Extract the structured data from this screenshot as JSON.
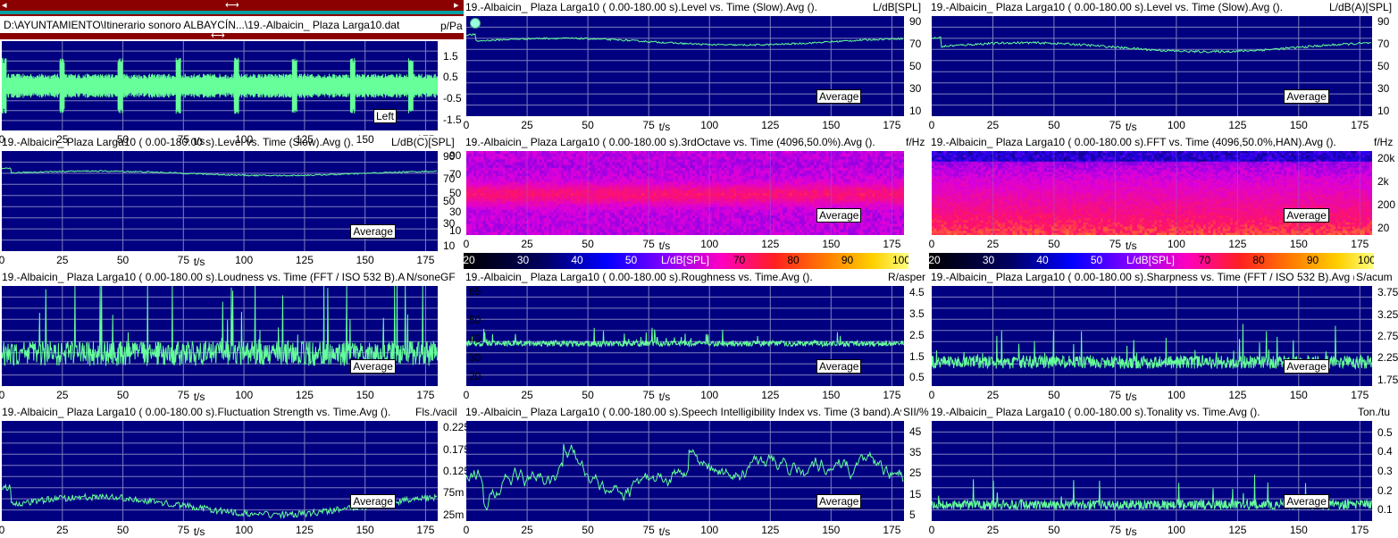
{
  "window": {
    "file_path": "D:\\AYUNTAMIENTO\\Itinerario sonoro ALBAYCÍN...\\19.-Albaicin_ Plaza Larga10.dat",
    "top_arrow": "⟷",
    "splitter_arrow": "⟷"
  },
  "colors": {
    "plot_bg": "#000080",
    "trace": "#66ff99",
    "grid": "#7f7fbf",
    "spectro_low": "#000000",
    "spectro_high": "#ffff80"
  },
  "panels": [
    {
      "id": "wave",
      "title": "",
      "unit": "p/Pa",
      "xunit": "t/s",
      "label": "Left",
      "xticks": [
        "0",
        "25",
        "50",
        "75",
        "100",
        "125",
        "150",
        "175"
      ],
      "yticks": [
        "1.5",
        "0.5",
        "-0.5",
        "-1.5"
      ],
      "yvals": [
        1.5,
        0.5,
        -0.5,
        -1.5
      ],
      "ymin": -2,
      "ymax": 2.2,
      "kind": "wave"
    },
    {
      "id": "level",
      "title": "19.-Albaicin_ Plaza Larga10 ( 0.00-180.00 s).Level vs. Time (Slow).Avg ().",
      "unit": "L/dB[SPL]",
      "xunit": "t/s",
      "label": "Average",
      "xticks": [
        "0",
        "25",
        "50",
        "75",
        "100",
        "125",
        "150",
        "175"
      ],
      "yticks": [
        "90",
        "70",
        "50",
        "30",
        "10"
      ],
      "yvals": [
        90,
        70,
        50,
        30,
        10
      ],
      "ymin": 5,
      "ymax": 95,
      "kind": "line",
      "base": 72,
      "amp": 3,
      "noise": 1.5
    },
    {
      "id": "levela",
      "title": "19.-Albaicin_ Plaza Larga10 ( 0.00-180.00 s).Level vs. Time (Slow).Avg ().",
      "unit": "L/dB(A)[SPL]",
      "xunit": "t/s",
      "label": "Average",
      "xticks": [
        "0",
        "25",
        "50",
        "75",
        "100",
        "125",
        "150",
        "175"
      ],
      "yticks": [
        "90",
        "70",
        "50",
        "30",
        "10"
      ],
      "yvals": [
        90,
        70,
        50,
        30,
        10
      ],
      "ymin": 5,
      "ymax": 95,
      "kind": "line",
      "base": 67,
      "amp": 4,
      "noise": 2
    },
    {
      "id": "levelc",
      "title": "19.-Albaicin_ Plaza Larga10 ( 0.00-180.00 s).Level vs. Time (Slow).Avg ().",
      "unit": "L/dB(C)[SPL]",
      "xunit": "t/s",
      "label": "Average",
      "xticks": [
        "0",
        "25",
        "50",
        "75",
        "100",
        "125",
        "150",
        "175"
      ],
      "yticks": [
        "90",
        "70",
        "50",
        "30",
        "10"
      ],
      "yvals": [
        90,
        70,
        50,
        30,
        10
      ],
      "ymin": 5,
      "ymax": 95,
      "kind": "line",
      "base": 75,
      "amp": 2,
      "noise": 1.2
    },
    {
      "id": "octave",
      "title": "19.-Albaicin_ Plaza Larga10 ( 0.00-180.00 s).3rdOctave vs. Time (4096,50.0%).Avg ().",
      "unit": "f/Hz",
      "xunit": "t/s",
      "label": "Average",
      "xticks": [
        "0",
        "25",
        "50",
        "75",
        "100",
        "125",
        "150",
        "175"
      ],
      "yticks": [
        "90",
        "70",
        "50",
        "30",
        "10"
      ],
      "yvals": [
        90,
        70,
        50,
        30,
        10
      ],
      "ymin": 5,
      "ymax": 95,
      "kind": "spectro"
    },
    {
      "id": "fft",
      "title": "19.-Albaicin_ Plaza Larga10 ( 0.00-180.00 s).FFT vs. Time (4096,50.0%,HAN).Avg ().",
      "unit": "f/Hz",
      "xunit": "t/s",
      "label": "Average",
      "xticks": [
        "0",
        "25",
        "50",
        "75",
        "100",
        "125",
        "150",
        "175"
      ],
      "yticks": [
        "20k",
        "2k",
        "200",
        "20"
      ],
      "yvals": [
        4,
        3,
        2,
        1
      ],
      "ymin": 0.7,
      "ymax": 4.3,
      "kind": "spectro2"
    },
    {
      "id": "loud",
      "title": "19.-Albaicin_ Plaza Larga10 ( 0.00-180.00 s).Loudness vs. Time (FFT / ISO 532 B).Avg ().",
      "unit": "N/soneGF",
      "xunit": "t/s",
      "label": "Average",
      "xticks": [
        "0",
        "25",
        "50",
        "75",
        "100",
        "125",
        "150",
        "175"
      ],
      "yticks": [],
      "yvals": [],
      "ymin": 0,
      "ymax": 10,
      "kind": "spiky",
      "base": 2,
      "amp": 5,
      "noise": 2.5
    },
    {
      "id": "rough",
      "title": "19.-Albaicin_ Plaza Larga10 ( 0.00-180.00 s).Roughness vs. Time.Avg ().",
      "unit": "R/asper",
      "xunit": "t/s",
      "label": "Average",
      "xticks": [
        "0",
        "25",
        "50",
        "75",
        "100",
        "125",
        "150",
        "175"
      ],
      "yticks": [
        "65",
        "50",
        "40",
        "30",
        "20",
        "4.5",
        "3.5",
        "2.5",
        "1.5",
        "0.5"
      ],
      "kind": "spiky",
      "base": 36,
      "amp": 4,
      "noise": 3,
      "ymin": 15,
      "ymax": 68,
      "dual": true
    },
    {
      "id": "sharp",
      "title": "19.-Albaicin_ Plaza Larga10 ( 0.00-180.00 s).Sharpness vs. Time (FFT / ISO 532 B).Avg ().",
      "unit": "S/acum",
      "xunit": "t/s",
      "label": "Average",
      "xticks": [
        "0",
        "25",
        "50",
        "75",
        "100",
        "125",
        "150",
        "175"
      ],
      "yticks": [
        "3.75",
        "3.25",
        "2.75",
        "2.25",
        "1.75"
      ],
      "yvals": [
        3.75,
        3.25,
        2.75,
        2.25,
        1.75
      ],
      "ymin": 1.6,
      "ymax": 3.9,
      "kind": "spiky",
      "base": 2.0,
      "amp": 0.4,
      "noise": 0.3
    },
    {
      "id": "fluct",
      "title": "19.-Albaicin_ Plaza Larga10 ( 0.00-180.00 s).Fluctuation Strength vs. Time.Avg ().",
      "unit": "Fls./vacil",
      "xunit": "t/s",
      "label": "Average",
      "xticks": [
        "0",
        "25",
        "50",
        "75",
        "100",
        "125",
        "150",
        "175"
      ],
      "yticks": [
        "0.225",
        "0.175",
        "0.125",
        "75m",
        "25m"
      ],
      "yvals": [
        0.225,
        0.175,
        0.125,
        0.075,
        0.025
      ],
      "ymin": 0.01,
      "ymax": 0.24,
      "kind": "line",
      "base": 0.045,
      "amp": 0.02,
      "noise": 0.015
    },
    {
      "id": "sii",
      "title": "19.-Albaicin_ Plaza Larga10 ( 0.00-180.00 s).Speech Intelligibility Index vs. Time (3 band).Avg ().",
      "unit": "SII/%",
      "xunit": "t/s",
      "label": "Average",
      "xticks": [
        "0",
        "25",
        "50",
        "75",
        "100",
        "125",
        "150",
        "175"
      ],
      "yticks": [
        "45",
        "35",
        "25",
        "15",
        "5"
      ],
      "yvals": [
        45,
        35,
        25,
        15,
        5
      ],
      "ymin": 2,
      "ymax": 50,
      "kind": "wander",
      "base": 25,
      "amp": 12,
      "noise": 4
    },
    {
      "id": "tonal",
      "title": "19.-Albaicin_ Plaza Larga10 ( 0.00-180.00 s).Tonality vs. Time.Avg ().",
      "unit": "Ton./tu",
      "xunit": "t/s",
      "label": "Average",
      "xticks": [
        "0",
        "25",
        "50",
        "75",
        "100",
        "125",
        "150",
        "175"
      ],
      "yticks": [
        "0.5",
        "0.4",
        "0.3",
        "0.2",
        "0.1"
      ],
      "yvals": [
        0.5,
        0.4,
        0.3,
        0.2,
        0.1
      ],
      "ymin": 0.04,
      "ymax": 0.56,
      "kind": "spiky",
      "base": 0.1,
      "amp": 0.08,
      "noise": 0.05
    }
  ],
  "colorbar": {
    "ticks": [
      "20",
      "30",
      "40",
      "50",
      "L/dB[SPL]",
      "70",
      "80",
      "90",
      "100"
    ]
  }
}
